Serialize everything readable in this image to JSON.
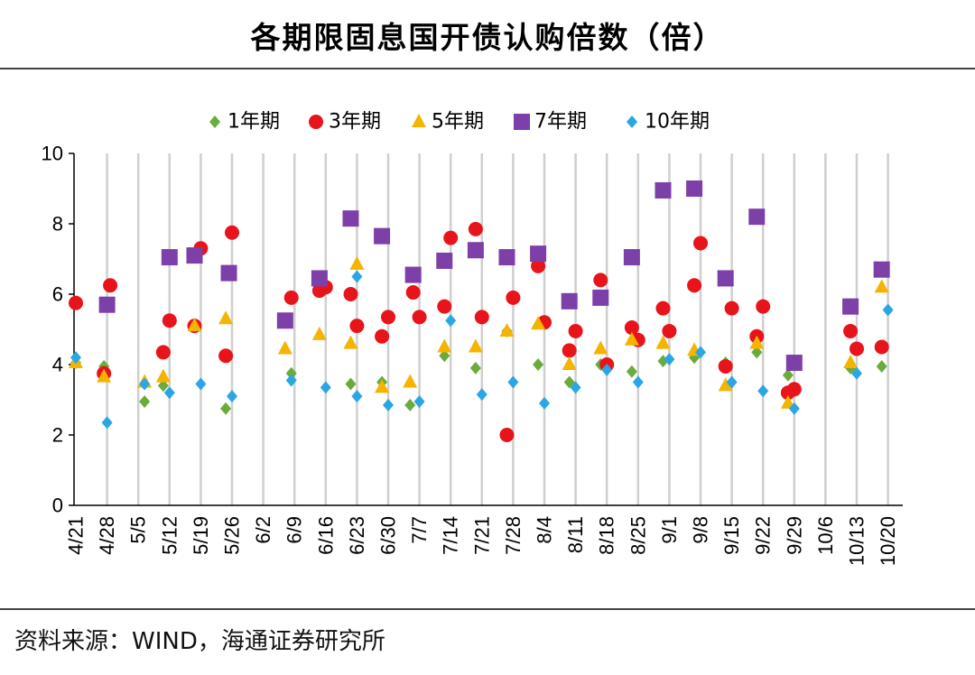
{
  "title": "各期限固息国开债认购倍数（倍）",
  "source": "资料来源：WIND，海通证券研究所",
  "chart_data": {
    "type": "scatter",
    "title": "各期限固息国开债认购倍数（倍）",
    "xlabel": "",
    "ylabel": "",
    "ylim": [
      0,
      10
    ],
    "yticks": [
      0,
      2,
      4,
      6,
      8,
      10
    ],
    "grid": "vertical",
    "legend_position": "top",
    "categories": [
      "4/21",
      "4/28",
      "5/5",
      "5/12",
      "5/19",
      "5/26",
      "6/2",
      "6/9",
      "6/16",
      "6/23",
      "6/30",
      "7/7",
      "7/14",
      "7/21",
      "7/28",
      "8/4",
      "8/11",
      "8/18",
      "8/25",
      "9/1",
      "9/8",
      "9/15",
      "9/22",
      "9/29",
      "10/6",
      "10/13",
      "10/20"
    ],
    "series": [
      {
        "name": "1年期",
        "marker": "diamond",
        "color": "#6aab3c",
        "points": [
          [
            0.0,
            4.05
          ],
          [
            0.9,
            3.95
          ],
          [
            2.2,
            2.95
          ],
          [
            2.8,
            3.4
          ],
          [
            4.8,
            2.75
          ],
          [
            6.9,
            3.75
          ],
          [
            8.8,
            3.45
          ],
          [
            9.8,
            3.5
          ],
          [
            10.7,
            2.85
          ],
          [
            11.8,
            4.25
          ],
          [
            12.8,
            3.9
          ],
          [
            13.8,
            4.95
          ],
          [
            14.8,
            4.0
          ],
          [
            15.8,
            3.5
          ],
          [
            16.8,
            4.0
          ],
          [
            17.8,
            3.8
          ],
          [
            18.8,
            4.1
          ],
          [
            19.8,
            4.2
          ],
          [
            20.8,
            4.05
          ],
          [
            21.8,
            4.35
          ],
          [
            22.8,
            3.7
          ],
          [
            24.8,
            3.9
          ],
          [
            25.8,
            3.95
          ]
        ]
      },
      {
        "name": "3年期",
        "marker": "circle",
        "color": "#e8141b",
        "points": [
          [
            0.0,
            5.75
          ],
          [
            0.9,
            3.75
          ],
          [
            1.1,
            6.25
          ],
          [
            2.8,
            4.35
          ],
          [
            3.0,
            5.25
          ],
          [
            3.8,
            5.1
          ],
          [
            4.0,
            7.3
          ],
          [
            4.8,
            4.25
          ],
          [
            5.0,
            7.75
          ],
          [
            6.9,
            5.9
          ],
          [
            7.8,
            6.1
          ],
          [
            8.0,
            6.2
          ],
          [
            8.8,
            6.0
          ],
          [
            9.0,
            5.1
          ],
          [
            9.8,
            4.8
          ],
          [
            10.0,
            5.35
          ],
          [
            10.8,
            6.05
          ],
          [
            11.0,
            5.35
          ],
          [
            11.8,
            5.65
          ],
          [
            12.0,
            7.6
          ],
          [
            12.8,
            7.85
          ],
          [
            13.0,
            5.35
          ],
          [
            13.8,
            2.0
          ],
          [
            14.0,
            5.9
          ],
          [
            14.8,
            6.8
          ],
          [
            15.0,
            5.2
          ],
          [
            15.8,
            4.4
          ],
          [
            16.0,
            4.95
          ],
          [
            16.8,
            6.4
          ],
          [
            17.0,
            4.0
          ],
          [
            17.8,
            5.05
          ],
          [
            18.0,
            4.7
          ],
          [
            18.8,
            5.6
          ],
          [
            19.0,
            4.95
          ],
          [
            19.8,
            6.25
          ],
          [
            20.0,
            7.45
          ],
          [
            20.8,
            3.95
          ],
          [
            21.0,
            5.6
          ],
          [
            21.8,
            4.8
          ],
          [
            22.0,
            5.65
          ],
          [
            22.8,
            3.2
          ],
          [
            23.0,
            3.3
          ],
          [
            24.8,
            4.95
          ],
          [
            25.0,
            4.45
          ],
          [
            25.8,
            4.5
          ]
        ]
      },
      {
        "name": "5年期",
        "marker": "triangle",
        "color": "#f5b400",
        "points": [
          [
            0.0,
            4.05
          ],
          [
            0.9,
            3.65
          ],
          [
            2.2,
            3.5
          ],
          [
            2.8,
            3.65
          ],
          [
            3.8,
            5.1
          ],
          [
            4.8,
            5.3
          ],
          [
            6.7,
            4.45
          ],
          [
            7.8,
            4.85
          ],
          [
            8.8,
            4.6
          ],
          [
            9.0,
            6.85
          ],
          [
            9.8,
            3.35
          ],
          [
            10.7,
            3.5
          ],
          [
            11.8,
            4.5
          ],
          [
            12.8,
            4.5
          ],
          [
            13.8,
            4.95
          ],
          [
            14.8,
            5.15
          ],
          [
            15.8,
            4.0
          ],
          [
            16.8,
            4.45
          ],
          [
            17.8,
            4.7
          ],
          [
            18.8,
            4.6
          ],
          [
            19.8,
            4.4
          ],
          [
            20.8,
            3.4
          ],
          [
            21.8,
            4.6
          ],
          [
            22.8,
            2.9
          ],
          [
            24.8,
            4.05
          ],
          [
            25.8,
            6.2
          ]
        ]
      },
      {
        "name": "7年期",
        "marker": "square",
        "color": "#7d3fa8",
        "points": [
          [
            1.0,
            5.7
          ],
          [
            3.0,
            7.05
          ],
          [
            3.8,
            7.1
          ],
          [
            4.9,
            6.6
          ],
          [
            6.7,
            5.25
          ],
          [
            7.8,
            6.45
          ],
          [
            8.8,
            8.15
          ],
          [
            9.8,
            7.65
          ],
          [
            10.8,
            6.55
          ],
          [
            11.8,
            6.95
          ],
          [
            12.8,
            7.25
          ],
          [
            13.8,
            7.05
          ],
          [
            14.8,
            7.15
          ],
          [
            15.8,
            5.8
          ],
          [
            16.8,
            5.9
          ],
          [
            17.8,
            7.05
          ],
          [
            18.8,
            8.95
          ],
          [
            19.8,
            9.0
          ],
          [
            20.8,
            6.45
          ],
          [
            21.8,
            8.2
          ],
          [
            23.0,
            4.05
          ],
          [
            24.8,
            5.65
          ],
          [
            25.8,
            6.7
          ]
        ]
      },
      {
        "name": "10年期",
        "marker": "diamond",
        "color": "#29a6e3",
        "points": [
          [
            0.0,
            4.2
          ],
          [
            1.0,
            2.35
          ],
          [
            2.2,
            3.45
          ],
          [
            3.0,
            3.2
          ],
          [
            4.0,
            3.45
          ],
          [
            5.0,
            3.1
          ],
          [
            6.9,
            3.55
          ],
          [
            8.0,
            3.35
          ],
          [
            9.0,
            6.5
          ],
          [
            9.0,
            3.1
          ],
          [
            10.0,
            2.85
          ],
          [
            11.0,
            2.95
          ],
          [
            12.0,
            5.25
          ],
          [
            13.0,
            3.15
          ],
          [
            14.0,
            3.5
          ],
          [
            15.0,
            2.9
          ],
          [
            16.0,
            3.35
          ],
          [
            17.0,
            3.85
          ],
          [
            18.0,
            3.5
          ],
          [
            19.0,
            4.15
          ],
          [
            20.0,
            4.35
          ],
          [
            21.0,
            3.5
          ],
          [
            22.0,
            3.25
          ],
          [
            23.0,
            2.75
          ],
          [
            25.0,
            3.75
          ],
          [
            26.0,
            5.55
          ]
        ]
      }
    ]
  }
}
